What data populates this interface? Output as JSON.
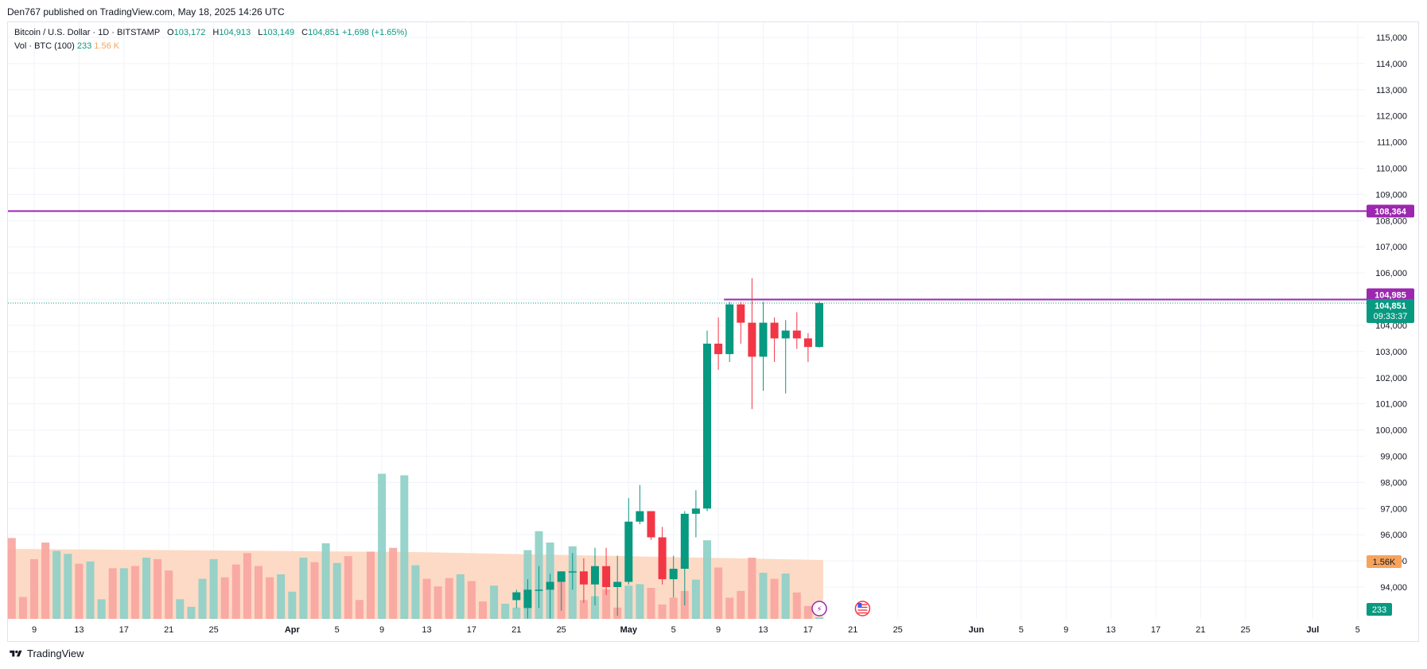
{
  "header": {
    "published": "Den767 published on TradingView.com, May 18, 2025 14:26 UTC"
  },
  "legend": {
    "symbol": "Bitcoin / U.S. Dollar · 1D · BITSTAMP",
    "o_label": "O",
    "o_value": "103,172",
    "h_label": "H",
    "h_value": "104,913",
    "l_label": "L",
    "l_value": "103,149",
    "c_label": "C",
    "c_value": "104,851",
    "change": "+1,698 (+1.65%)",
    "vol_label": "Vol · BTC (100)",
    "vol_value": "233",
    "vol_ma_value": "1.56 K"
  },
  "footer": {
    "brand": "TradingView"
  },
  "chart_data": {
    "type": "candlestick",
    "symbol": "Bitcoin / U.S. Dollar",
    "interval": "1D",
    "exchange": "BITSTAMP",
    "y_axis": {
      "ticks": [
        "94,000",
        "95,000",
        "96,000",
        "97,000",
        "98,000",
        "99,000",
        "100,000",
        "101,000",
        "102,000",
        "103,000",
        "104,000",
        "105,000",
        "106,000",
        "107,000",
        "108,000",
        "109,000",
        "110,000",
        "111,000",
        "112,000",
        "113,000",
        "114,000",
        "115,000"
      ],
      "range": [
        93000,
        115800
      ]
    },
    "x_axis": {
      "ticks": [
        {
          "label": "9",
          "date": "2025-03-09"
        },
        {
          "label": "13",
          "date": "2025-03-13"
        },
        {
          "label": "17",
          "date": "2025-03-17"
        },
        {
          "label": "21",
          "date": "2025-03-21"
        },
        {
          "label": "25",
          "date": "2025-03-25"
        },
        {
          "label": "Apr",
          "date": "2025-04-01"
        },
        {
          "label": "5",
          "date": "2025-04-05"
        },
        {
          "label": "9",
          "date": "2025-04-09"
        },
        {
          "label": "13",
          "date": "2025-04-13"
        },
        {
          "label": "17",
          "date": "2025-04-17"
        },
        {
          "label": "21",
          "date": "2025-04-21"
        },
        {
          "label": "25",
          "date": "2025-04-25"
        },
        {
          "label": "May",
          "date": "2025-05-01"
        },
        {
          "label": "5",
          "date": "2025-05-05"
        },
        {
          "label": "9",
          "date": "2025-05-09"
        },
        {
          "label": "13",
          "date": "2025-05-13"
        },
        {
          "label": "17",
          "date": "2025-05-17"
        },
        {
          "label": "21",
          "date": "2025-05-21"
        },
        {
          "label": "25",
          "date": "2025-05-25"
        },
        {
          "label": "Jun",
          "date": "2025-06-01"
        },
        {
          "label": "5",
          "date": "2025-06-05"
        },
        {
          "label": "9",
          "date": "2025-06-09"
        },
        {
          "label": "13",
          "date": "2025-06-13"
        },
        {
          "label": "17",
          "date": "2025-06-17"
        },
        {
          "label": "21",
          "date": "2025-06-21"
        },
        {
          "label": "25",
          "date": "2025-06-25"
        },
        {
          "label": "Jul",
          "date": "2025-07-01"
        },
        {
          "label": "5",
          "date": "2025-07-05"
        }
      ]
    },
    "candles": [
      {
        "date": "2025-04-21",
        "o": 93500,
        "h": 93900,
        "l": 93200,
        "c": 93800
      },
      {
        "date": "2025-04-22",
        "o": 93200,
        "h": 94300,
        "l": 92800,
        "c": 93900
      },
      {
        "date": "2025-04-23",
        "o": 93900,
        "h": 94800,
        "l": 93200,
        "c": 93900
      },
      {
        "date": "2025-04-24",
        "o": 93900,
        "h": 94500,
        "l": 92800,
        "c": 94200
      },
      {
        "date": "2025-04-25",
        "o": 94200,
        "h": 94600,
        "l": 93100,
        "c": 94600
      },
      {
        "date": "2025-04-26",
        "o": 94600,
        "h": 95300,
        "l": 93900,
        "c": 94600
      },
      {
        "date": "2025-04-27",
        "o": 94600,
        "h": 95100,
        "l": 93400,
        "c": 94100
      },
      {
        "date": "2025-04-28",
        "o": 94100,
        "h": 95500,
        "l": 93300,
        "c": 94800
      },
      {
        "date": "2025-04-29",
        "o": 94800,
        "h": 95500,
        "l": 93700,
        "c": 94000
      },
      {
        "date": "2025-04-30",
        "o": 94000,
        "h": 95200,
        "l": 92900,
        "c": 94200
      },
      {
        "date": "2025-05-01",
        "o": 94200,
        "h": 97400,
        "l": 94100,
        "c": 96500
      },
      {
        "date": "2025-05-02",
        "o": 96500,
        "h": 97900,
        "l": 96400,
        "c": 96900
      },
      {
        "date": "2025-05-03",
        "o": 96900,
        "h": 96900,
        "l": 95800,
        "c": 95900
      },
      {
        "date": "2025-05-04",
        "o": 95900,
        "h": 96300,
        "l": 94100,
        "c": 94300
      },
      {
        "date": "2025-05-05",
        "o": 94300,
        "h": 95200,
        "l": 93600,
        "c": 94700
      },
      {
        "date": "2025-05-06",
        "o": 94700,
        "h": 96900,
        "l": 93300,
        "c": 96800
      },
      {
        "date": "2025-05-07",
        "o": 96800,
        "h": 97700,
        "l": 95900,
        "c": 97000
      },
      {
        "date": "2025-05-08",
        "o": 97000,
        "h": 103800,
        "l": 96900,
        "c": 103300
      },
      {
        "date": "2025-05-09",
        "o": 103300,
        "h": 104300,
        "l": 102300,
        "c": 102900
      },
      {
        "date": "2025-05-10",
        "o": 102900,
        "h": 104900,
        "l": 102600,
        "c": 104800
      },
      {
        "date": "2025-05-11",
        "o": 104800,
        "h": 104900,
        "l": 103300,
        "c": 104100
      },
      {
        "date": "2025-05-12",
        "o": 104100,
        "h": 105800,
        "l": 100800,
        "c": 102800
      },
      {
        "date": "2025-05-13",
        "o": 102800,
        "h": 104900,
        "l": 101500,
        "c": 104100
      },
      {
        "date": "2025-05-14",
        "o": 104100,
        "h": 104300,
        "l": 102600,
        "c": 103500
      },
      {
        "date": "2025-05-15",
        "o": 103500,
        "h": 104200,
        "l": 101400,
        "c": 103800
      },
      {
        "date": "2025-05-16",
        "o": 103800,
        "h": 104500,
        "l": 103100,
        "c": 103500
      },
      {
        "date": "2025-05-17",
        "o": 103500,
        "h": 103700,
        "l": 102600,
        "c": 103172
      },
      {
        "date": "2025-05-18",
        "o": 103172,
        "h": 104913,
        "l": 103149,
        "c": 104851
      }
    ],
    "volume": [
      {
        "date": "2025-03-07",
        "v": 10.7,
        "up": false
      },
      {
        "date": "2025-03-08",
        "v": 2.9,
        "up": false
      },
      {
        "date": "2025-03-09",
        "v": 7.9,
        "up": false
      },
      {
        "date": "2025-03-10",
        "v": 10.1,
        "up": false
      },
      {
        "date": "2025-03-11",
        "v": 9.0,
        "up": true
      },
      {
        "date": "2025-03-12",
        "v": 8.6,
        "up": true
      },
      {
        "date": "2025-03-13",
        "v": 7.3,
        "up": false
      },
      {
        "date": "2025-03-14",
        "v": 7.6,
        "up": true
      },
      {
        "date": "2025-03-15",
        "v": 2.6,
        "up": true
      },
      {
        "date": "2025-03-16",
        "v": 6.7,
        "up": false
      },
      {
        "date": "2025-03-17",
        "v": 6.7,
        "up": true
      },
      {
        "date": "2025-03-18",
        "v": 7.0,
        "up": false
      },
      {
        "date": "2025-03-19",
        "v": 8.1,
        "up": true
      },
      {
        "date": "2025-03-20",
        "v": 7.9,
        "up": false
      },
      {
        "date": "2025-03-21",
        "v": 6.4,
        "up": false
      },
      {
        "date": "2025-03-22",
        "v": 2.6,
        "up": true
      },
      {
        "date": "2025-03-23",
        "v": 1.6,
        "up": true
      },
      {
        "date": "2025-03-24",
        "v": 5.3,
        "up": true
      },
      {
        "date": "2025-03-25",
        "v": 7.9,
        "up": true
      },
      {
        "date": "2025-03-26",
        "v": 5.5,
        "up": false
      },
      {
        "date": "2025-03-27",
        "v": 7.2,
        "up": false
      },
      {
        "date": "2025-03-28",
        "v": 8.7,
        "up": false
      },
      {
        "date": "2025-03-29",
        "v": 7.0,
        "up": false
      },
      {
        "date": "2025-03-30",
        "v": 5.5,
        "up": false
      },
      {
        "date": "2025-03-31",
        "v": 5.9,
        "up": true
      },
      {
        "date": "2025-04-01",
        "v": 3.6,
        "up": true
      },
      {
        "date": "2025-04-02",
        "v": 8.1,
        "up": true
      },
      {
        "date": "2025-04-03",
        "v": 7.5,
        "up": false
      },
      {
        "date": "2025-04-04",
        "v": 10.0,
        "up": true
      },
      {
        "date": "2025-04-05",
        "v": 7.4,
        "up": true
      },
      {
        "date": "2025-04-06",
        "v": 8.3,
        "up": false
      },
      {
        "date": "2025-04-07",
        "v": 2.5,
        "up": false
      },
      {
        "date": "2025-04-08",
        "v": 8.9,
        "up": false
      },
      {
        "date": "2025-04-09",
        "v": 19.2,
        "up": true
      },
      {
        "date": "2025-04-10",
        "v": 9.4,
        "up": false
      },
      {
        "date": "2025-04-11",
        "v": 19.0,
        "up": true
      },
      {
        "date": "2025-04-12",
        "v": 7.1,
        "up": true
      },
      {
        "date": "2025-04-13",
        "v": 5.3,
        "up": false
      },
      {
        "date": "2025-04-14",
        "v": 4.3,
        "up": false
      },
      {
        "date": "2025-04-15",
        "v": 5.4,
        "up": false
      },
      {
        "date": "2025-04-16",
        "v": 5.9,
        "up": true
      },
      {
        "date": "2025-04-17",
        "v": 5.0,
        "up": false
      },
      {
        "date": "2025-04-18",
        "v": 2.3,
        "up": false
      },
      {
        "date": "2025-04-19",
        "v": 4.4,
        "up": true
      },
      {
        "date": "2025-04-20",
        "v": 2.0,
        "up": true
      },
      {
        "date": "2025-04-21",
        "v": 1.5,
        "up": true
      },
      {
        "date": "2025-04-22",
        "v": 9.1,
        "up": true
      },
      {
        "date": "2025-04-23",
        "v": 11.6,
        "up": true
      },
      {
        "date": "2025-04-24",
        "v": 10.1,
        "up": true
      },
      {
        "date": "2025-04-25",
        "v": 5.7,
        "up": false
      },
      {
        "date": "2025-04-26",
        "v": 9.6,
        "up": true
      },
      {
        "date": "2025-04-27",
        "v": 2.5,
        "up": false
      },
      {
        "date": "2025-04-28",
        "v": 3.0,
        "up": true
      },
      {
        "date": "2025-04-29",
        "v": 3.9,
        "up": false
      },
      {
        "date": "2025-04-30",
        "v": 1.5,
        "up": false
      },
      {
        "date": "2025-05-01",
        "v": 4.4,
        "up": true
      },
      {
        "date": "2025-05-02",
        "v": 4.6,
        "up": true
      },
      {
        "date": "2025-05-03",
        "v": 4.1,
        "up": false
      },
      {
        "date": "2025-05-04",
        "v": 1.9,
        "up": false
      },
      {
        "date": "2025-05-05",
        "v": 2.8,
        "up": false
      },
      {
        "date": "2025-05-06",
        "v": 3.7,
        "up": false
      },
      {
        "date": "2025-05-07",
        "v": 5.2,
        "up": true
      },
      {
        "date": "2025-05-08",
        "v": 10.4,
        "up": true
      },
      {
        "date": "2025-05-09",
        "v": 6.8,
        "up": false
      },
      {
        "date": "2025-05-10",
        "v": 2.8,
        "up": false
      },
      {
        "date": "2025-05-11",
        "v": 3.7,
        "up": false
      },
      {
        "date": "2025-05-12",
        "v": 8.1,
        "up": false
      },
      {
        "date": "2025-05-13",
        "v": 6.1,
        "up": true
      },
      {
        "date": "2025-05-14",
        "v": 5.3,
        "up": false
      },
      {
        "date": "2025-05-15",
        "v": 6.0,
        "up": true
      },
      {
        "date": "2025-05-16",
        "v": 3.5,
        "up": false
      },
      {
        "date": "2025-05-17",
        "v": 1.7,
        "up": false
      },
      {
        "date": "2025-05-18",
        "v": 0.2,
        "up": true
      }
    ],
    "volume_ma_label": "1.56K",
    "volume_last_label": "233",
    "lines": [
      {
        "price": 108364,
        "label": "108,364",
        "color": "#9c27b0",
        "start_date": "2025-03-07",
        "style": "solid"
      },
      {
        "price": 104985,
        "label": "104,985",
        "color": "#9c27b0",
        "start_date": "2025-05-10",
        "style": "solid"
      }
    ],
    "last_price": {
      "price": 104851,
      "label": "104,851",
      "countdown": "09:33:37",
      "color": "#089981"
    },
    "colors": {
      "up": "#089981",
      "down": "#f23645",
      "up_volume": "#8ccfc7",
      "down_volume": "#f8a49e",
      "ma_fill": "#fdd4bb",
      "grid": "#f0f3fa"
    },
    "grid": true
  }
}
